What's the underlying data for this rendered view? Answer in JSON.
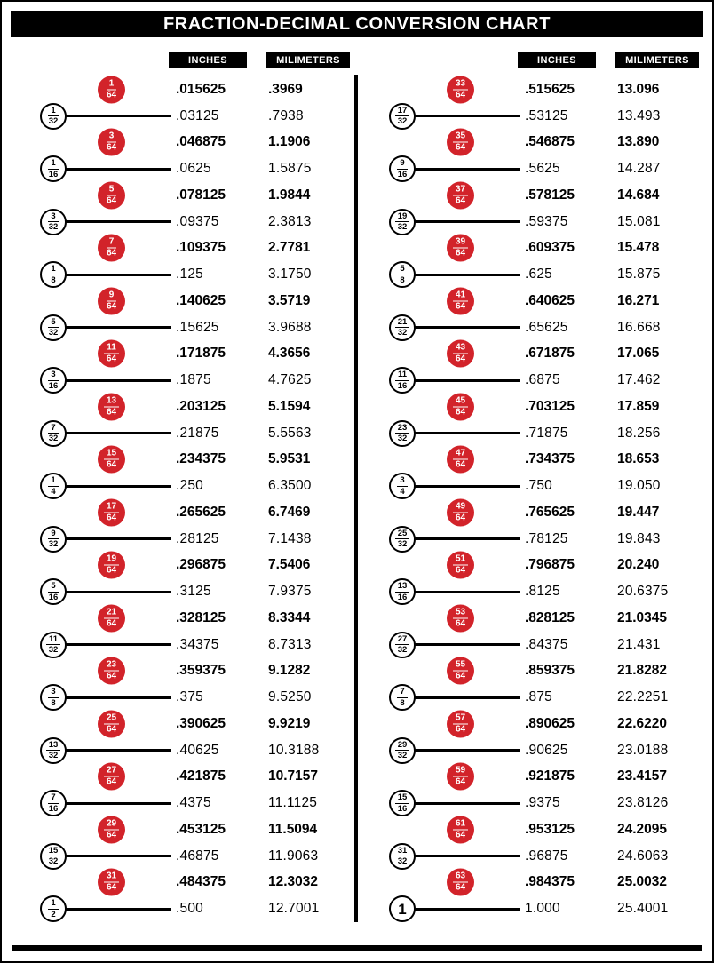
{
  "title": "FRACTION-DECIMAL CONVERSION CHART",
  "colors": {
    "red": "#d2232a",
    "black": "#000000"
  },
  "columns": [
    {
      "inches_header": "INCHES",
      "mm_header": "MILIMETERS",
      "rows": [
        {
          "num": "1",
          "den": "64",
          "style": "red",
          "inches": ".015625",
          "mm": ".3969"
        },
        {
          "num": "1",
          "den": "32",
          "style": "white",
          "inches": ".03125",
          "mm": ".7938"
        },
        {
          "num": "3",
          "den": "64",
          "style": "red",
          "inches": ".046875",
          "mm": "1.1906"
        },
        {
          "num": "1",
          "den": "16",
          "style": "white",
          "inches": ".0625",
          "mm": "1.5875"
        },
        {
          "num": "5",
          "den": "64",
          "style": "red",
          "inches": ".078125",
          "mm": "1.9844"
        },
        {
          "num": "3",
          "den": "32",
          "style": "white",
          "inches": ".09375",
          "mm": "2.3813"
        },
        {
          "num": "7",
          "den": "64",
          "style": "red",
          "inches": ".109375",
          "mm": "2.7781"
        },
        {
          "num": "1",
          "den": "8",
          "style": "white",
          "inches": ".125",
          "mm": "3.1750"
        },
        {
          "num": "9",
          "den": "64",
          "style": "red",
          "inches": ".140625",
          "mm": "3.5719"
        },
        {
          "num": "5",
          "den": "32",
          "style": "white",
          "inches": ".15625",
          "mm": "3.9688"
        },
        {
          "num": "11",
          "den": "64",
          "style": "red",
          "inches": ".171875",
          "mm": "4.3656"
        },
        {
          "num": "3",
          "den": "16",
          "style": "white",
          "inches": ".1875",
          "mm": "4.7625"
        },
        {
          "num": "13",
          "den": "64",
          "style": "red",
          "inches": ".203125",
          "mm": "5.1594"
        },
        {
          "num": "7",
          "den": "32",
          "style": "white",
          "inches": ".21875",
          "mm": "5.5563"
        },
        {
          "num": "15",
          "den": "64",
          "style": "red",
          "inches": ".234375",
          "mm": "5.9531"
        },
        {
          "num": "1",
          "den": "4",
          "style": "white",
          "inches": ".250",
          "mm": "6.3500"
        },
        {
          "num": "17",
          "den": "64",
          "style": "red",
          "inches": ".265625",
          "mm": "6.7469"
        },
        {
          "num": "9",
          "den": "32",
          "style": "white",
          "inches": ".28125",
          "mm": "7.1438"
        },
        {
          "num": "19",
          "den": "64",
          "style": "red",
          "inches": ".296875",
          "mm": "7.5406"
        },
        {
          "num": "5",
          "den": "16",
          "style": "white",
          "inches": ".3125",
          "mm": "7.9375"
        },
        {
          "num": "21",
          "den": "64",
          "style": "red",
          "inches": ".328125",
          "mm": "8.3344"
        },
        {
          "num": "11",
          "den": "32",
          "style": "white",
          "inches": ".34375",
          "mm": "8.7313"
        },
        {
          "num": "23",
          "den": "64",
          "style": "red",
          "inches": ".359375",
          "mm": "9.1282"
        },
        {
          "num": "3",
          "den": "8",
          "style": "white",
          "inches": ".375",
          "mm": "9.5250"
        },
        {
          "num": "25",
          "den": "64",
          "style": "red",
          "inches": ".390625",
          "mm": "9.9219"
        },
        {
          "num": "13",
          "den": "32",
          "style": "white",
          "inches": ".40625",
          "mm": "10.3188"
        },
        {
          "num": "27",
          "den": "64",
          "style": "red",
          "inches": ".421875",
          "mm": "10.7157"
        },
        {
          "num": "7",
          "den": "16",
          "style": "white",
          "inches": ".4375",
          "mm": "11.1125"
        },
        {
          "num": "29",
          "den": "64",
          "style": "red",
          "inches": ".453125",
          "mm": "11.5094"
        },
        {
          "num": "15",
          "den": "32",
          "style": "white",
          "inches": ".46875",
          "mm": "11.9063"
        },
        {
          "num": "31",
          "den": "64",
          "style": "red",
          "inches": ".484375",
          "mm": "12.3032"
        },
        {
          "num": "1",
          "den": "2",
          "style": "white",
          "inches": ".500",
          "mm": "12.7001"
        }
      ]
    },
    {
      "inches_header": "INCHES",
      "mm_header": "MILIMETERS",
      "rows": [
        {
          "num": "33",
          "den": "64",
          "style": "red",
          "inches": ".515625",
          "mm": "13.096"
        },
        {
          "num": "17",
          "den": "32",
          "style": "white",
          "inches": ".53125",
          "mm": "13.493"
        },
        {
          "num": "35",
          "den": "64",
          "style": "red",
          "inches": ".546875",
          "mm": "13.890"
        },
        {
          "num": "9",
          "den": "16",
          "style": "white",
          "inches": ".5625",
          "mm": "14.287"
        },
        {
          "num": "37",
          "den": "64",
          "style": "red",
          "inches": ".578125",
          "mm": "14.684"
        },
        {
          "num": "19",
          "den": "32",
          "style": "white",
          "inches": ".59375",
          "mm": "15.081"
        },
        {
          "num": "39",
          "den": "64",
          "style": "red",
          "inches": ".609375",
          "mm": "15.478"
        },
        {
          "num": "5",
          "den": "8",
          "style": "white",
          "inches": ".625",
          "mm": "15.875"
        },
        {
          "num": "41",
          "den": "64",
          "style": "red",
          "inches": ".640625",
          "mm": "16.271"
        },
        {
          "num": "21",
          "den": "32",
          "style": "white",
          "inches": ".65625",
          "mm": "16.668"
        },
        {
          "num": "43",
          "den": "64",
          "style": "red",
          "inches": ".671875",
          "mm": "17.065"
        },
        {
          "num": "11",
          "den": "16",
          "style": "white",
          "inches": ".6875",
          "mm": "17.462"
        },
        {
          "num": "45",
          "den": "64",
          "style": "red",
          "inches": ".703125",
          "mm": "17.859"
        },
        {
          "num": "23",
          "den": "32",
          "style": "white",
          "inches": ".71875",
          "mm": "18.256"
        },
        {
          "num": "47",
          "den": "64",
          "style": "red",
          "inches": ".734375",
          "mm": "18.653"
        },
        {
          "num": "3",
          "den": "4",
          "style": "white",
          "inches": ".750",
          "mm": "19.050"
        },
        {
          "num": "49",
          "den": "64",
          "style": "red",
          "inches": ".765625",
          "mm": "19.447"
        },
        {
          "num": "25",
          "den": "32",
          "style": "white",
          "inches": ".78125",
          "mm": "19.843"
        },
        {
          "num": "51",
          "den": "64",
          "style": "red",
          "inches": ".796875",
          "mm": "20.240"
        },
        {
          "num": "13",
          "den": "16",
          "style": "white",
          "inches": ".8125",
          "mm": "20.6375"
        },
        {
          "num": "53",
          "den": "64",
          "style": "red",
          "inches": ".828125",
          "mm": "21.0345"
        },
        {
          "num": "27",
          "den": "32",
          "style": "white",
          "inches": ".84375",
          "mm": "21.431"
        },
        {
          "num": "55",
          "den": "64",
          "style": "red",
          "inches": ".859375",
          "mm": "21.8282"
        },
        {
          "num": "7",
          "den": "8",
          "style": "white",
          "inches": ".875",
          "mm": "22.2251"
        },
        {
          "num": "57",
          "den": "64",
          "style": "red",
          "inches": ".890625",
          "mm": "22.6220"
        },
        {
          "num": "29",
          "den": "32",
          "style": "white",
          "inches": ".90625",
          "mm": "23.0188"
        },
        {
          "num": "59",
          "den": "64",
          "style": "red",
          "inches": ".921875",
          "mm": "23.4157"
        },
        {
          "num": "15",
          "den": "16",
          "style": "white",
          "inches": ".9375",
          "mm": "23.8126"
        },
        {
          "num": "61",
          "den": "64",
          "style": "red",
          "inches": ".953125",
          "mm": "24.2095"
        },
        {
          "num": "31",
          "den": "32",
          "style": "white",
          "inches": ".96875",
          "mm": "24.6063"
        },
        {
          "num": "63",
          "den": "64",
          "style": "red",
          "inches": ".984375",
          "mm": "25.0032"
        },
        {
          "num": "1",
          "den": "",
          "style": "white",
          "inches": "1.000",
          "mm": "25.4001"
        }
      ]
    }
  ]
}
